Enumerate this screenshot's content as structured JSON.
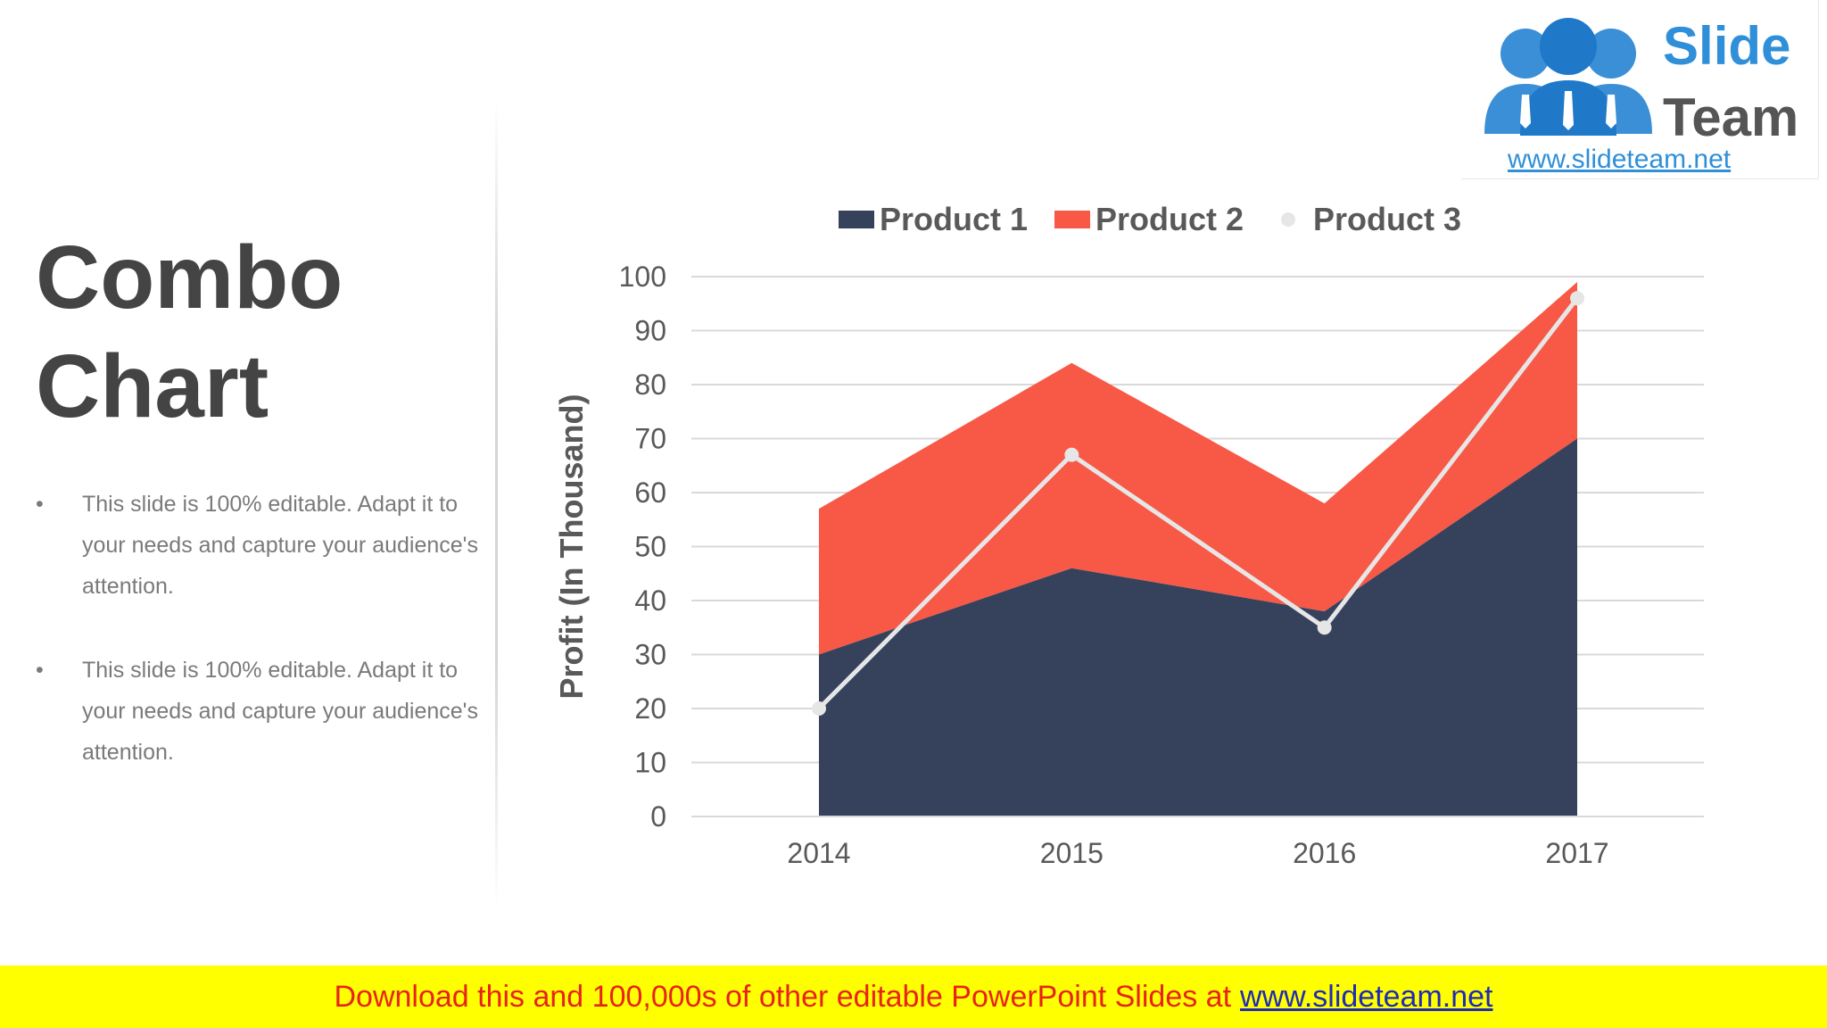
{
  "slide": {
    "title_lines": [
      "Combo",
      "Chart"
    ],
    "bullets": [
      "This slide is 100% editable. Adapt it to your needs and capture your audience's attention.",
      "This slide is 100% editable. Adapt it to your needs and capture your audience's attention."
    ],
    "bullet_marker": "•"
  },
  "logo": {
    "word1": "Slide",
    "word2": "Team",
    "url": "www.slideteam.net",
    "colors": {
      "figure": "#3a8fd6",
      "text_slide": "#2f8fd8",
      "text_team": "#555555"
    }
  },
  "banner": {
    "text": "Download this and 100,000s of other editable PowerPoint Slides at",
    "link": "www.slideteam.net"
  },
  "chart_data": {
    "type": "area",
    "categories": [
      "2014",
      "2015",
      "2016",
      "2017"
    ],
    "series": [
      {
        "name": "Product 1",
        "type": "area",
        "values": [
          30,
          46,
          38,
          70
        ],
        "color": "#36425c"
      },
      {
        "name": "Product 2",
        "type": "area",
        "stacked": true,
        "values": [
          27,
          38,
          20,
          29
        ],
        "color": "#f85846"
      },
      {
        "name": "Product 3",
        "type": "line",
        "values": [
          20,
          67,
          35,
          96
        ],
        "color": "#e6e6e6"
      }
    ],
    "title": "",
    "xlabel": "",
    "ylabel": "Profit (In Thousand)",
    "ylim": [
      0,
      100
    ],
    "yticks": [
      0,
      10,
      20,
      30,
      40,
      50,
      60,
      70,
      80,
      90,
      100
    ],
    "grid": true,
    "legend": "top"
  }
}
